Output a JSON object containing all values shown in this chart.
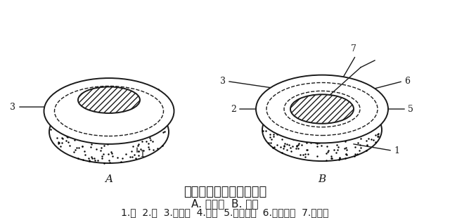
{
  "title": "黏液囊和腱鞘构造模式图",
  "subtitle": "A. 黏液囊  B. 腱鞘",
  "legend": "1.骨  2.腱  3.纤维膜  4.滑膜  5.滑膜壁层  6.滑膜腱层  7.腱系膜",
  "label_A": "A",
  "label_B": "B",
  "bg_color": "#ffffff",
  "line_color": "#1a1a1a",
  "hatch_color": "#1a1a1a",
  "bone_color": "#d4c4a0",
  "title_fontsize": 13,
  "subtitle_fontsize": 11,
  "legend_fontsize": 10
}
